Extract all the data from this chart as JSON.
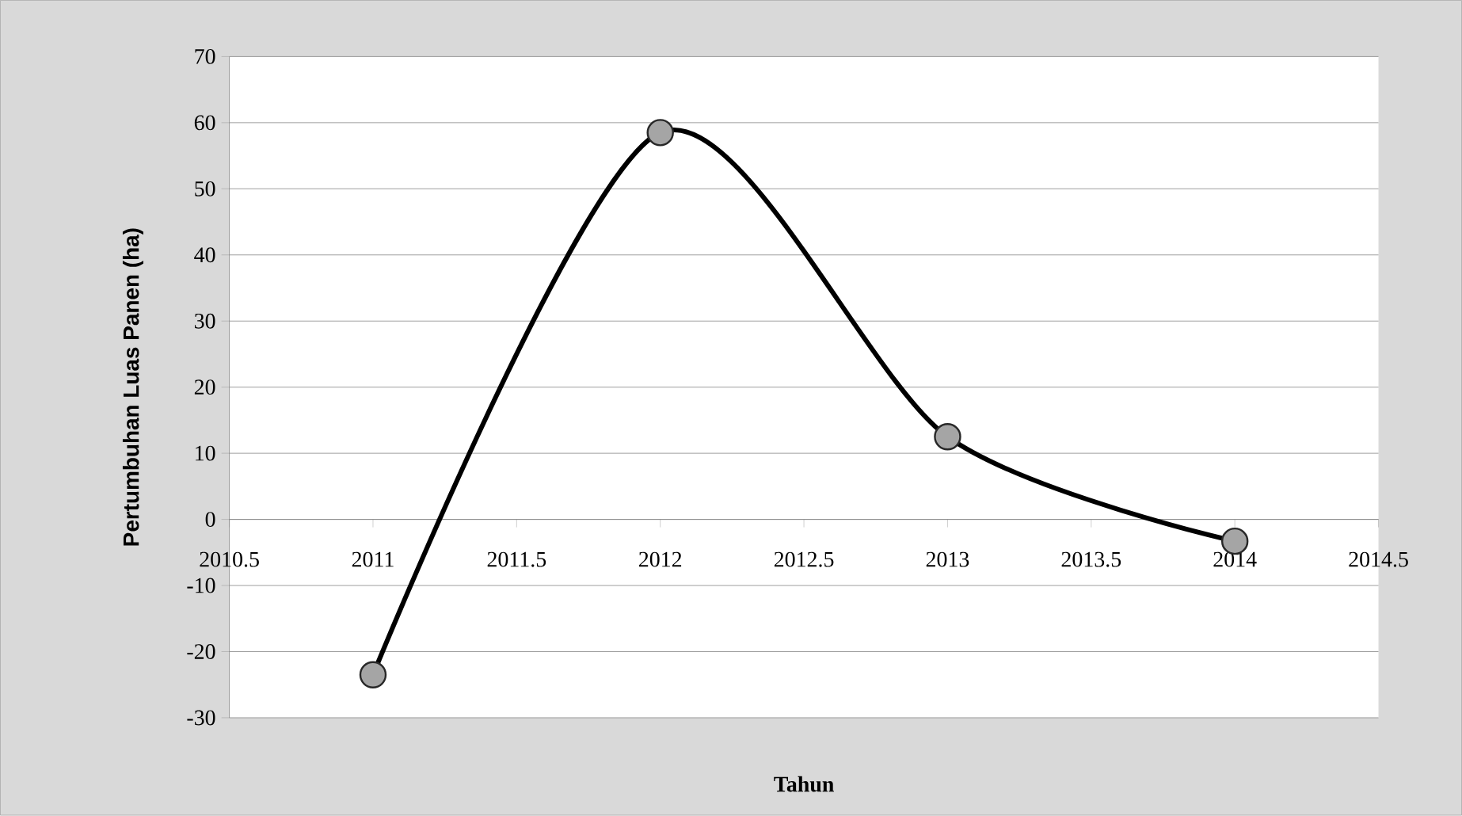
{
  "chart_data": {
    "type": "line",
    "xlabel": "Tahun",
    "ylabel": "Pertumbuhan Luas Panen (ha)",
    "x": [
      2011,
      2012,
      2013,
      2014
    ],
    "series": [
      {
        "color": "#000000",
        "values": [
          -23.5,
          58.5,
          12.5,
          -3.3
        ]
      }
    ],
    "xlim": [
      2010.5,
      2014.5
    ],
    "xticks": [
      2010.5,
      2011,
      2011.5,
      2012,
      2012.5,
      2013,
      2013.5,
      2014,
      2014.5
    ],
    "ylim": [
      -30,
      70
    ],
    "yticks": [
      -30,
      -20,
      -10,
      0,
      10,
      20,
      30,
      40,
      50,
      60,
      70
    ],
    "grid": "y",
    "marker": "circle",
    "line_style": "solid"
  }
}
